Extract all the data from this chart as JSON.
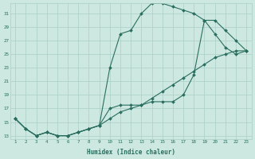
{
  "xlabel": "Humidex (Indice chaleur)",
  "bg_color": "#cce8e0",
  "grid_color": "#aacfc8",
  "line_color": "#2a6e60",
  "xticks": [
    1,
    2,
    3,
    4,
    5,
    6,
    7,
    8,
    9,
    10,
    11,
    12,
    13,
    14,
    15,
    16,
    17,
    18,
    19,
    20,
    21,
    22,
    23
  ],
  "yticks": [
    13,
    15,
    17,
    19,
    21,
    23,
    25,
    27,
    29,
    31
  ],
  "line1_x": [
    1,
    2,
    3,
    4,
    5,
    6,
    7,
    8,
    9,
    10,
    11,
    12,
    13,
    14,
    15,
    16,
    17,
    18,
    19,
    20,
    21,
    22,
    23
  ],
  "line1_y": [
    15.5,
    14.0,
    13.0,
    13.5,
    13.0,
    13.0,
    13.5,
    14.0,
    14.5,
    23.0,
    28.0,
    28.5,
    31.0,
    32.5,
    32.5,
    32.0,
    31.5,
    31.0,
    30.0,
    28.0,
    26.0,
    25.0,
    25.5
  ],
  "line2_x": [
    1,
    2,
    3,
    4,
    5,
    6,
    7,
    8,
    9,
    10,
    11,
    12,
    13,
    14,
    15,
    16,
    17,
    18,
    19,
    20,
    21,
    22,
    23
  ],
  "line2_y": [
    15.5,
    14.0,
    13.0,
    13.5,
    13.0,
    13.0,
    13.5,
    14.0,
    14.5,
    17.0,
    17.5,
    17.5,
    17.5,
    18.0,
    18.0,
    18.0,
    19.0,
    22.0,
    30.0,
    30.0,
    28.5,
    27.0,
    25.5
  ],
  "line3_x": [
    1,
    2,
    3,
    4,
    5,
    6,
    7,
    8,
    9,
    10,
    11,
    12,
    13,
    14,
    15,
    16,
    17,
    18,
    19,
    20,
    21,
    22,
    23
  ],
  "line3_y": [
    15.5,
    14.0,
    13.0,
    13.5,
    13.0,
    13.0,
    13.5,
    14.0,
    14.5,
    15.5,
    16.5,
    17.0,
    17.5,
    18.5,
    19.5,
    20.5,
    21.5,
    22.5,
    23.5,
    24.5,
    25.0,
    25.5,
    25.5
  ]
}
